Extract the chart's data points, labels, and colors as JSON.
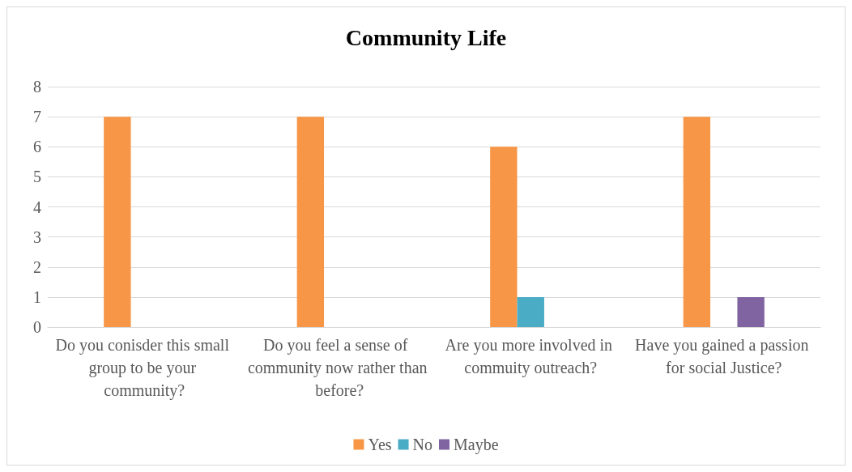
{
  "chart_data": {
    "type": "bar",
    "title": "Community Life",
    "categories": [
      "Do you conisder this small group to be your community?",
      "Do you feel a sense of community now rather than before?",
      "Are you more involved in commuity outreach?",
      "Have you gained a passion for social Justice?"
    ],
    "series": [
      {
        "name": "Yes",
        "color": "#f79646",
        "values": [
          7,
          7,
          6,
          7
        ]
      },
      {
        "name": "No",
        "color": "#4bacc6",
        "values": [
          0,
          0,
          1,
          0
        ]
      },
      {
        "name": "Maybe",
        "color": "#8064a2",
        "values": [
          0,
          0,
          0,
          1
        ]
      }
    ],
    "ylim": [
      0,
      8
    ],
    "yticks": [
      0,
      1,
      2,
      3,
      4,
      5,
      6,
      7,
      8
    ],
    "grid": "y",
    "legend": "bottom"
  }
}
